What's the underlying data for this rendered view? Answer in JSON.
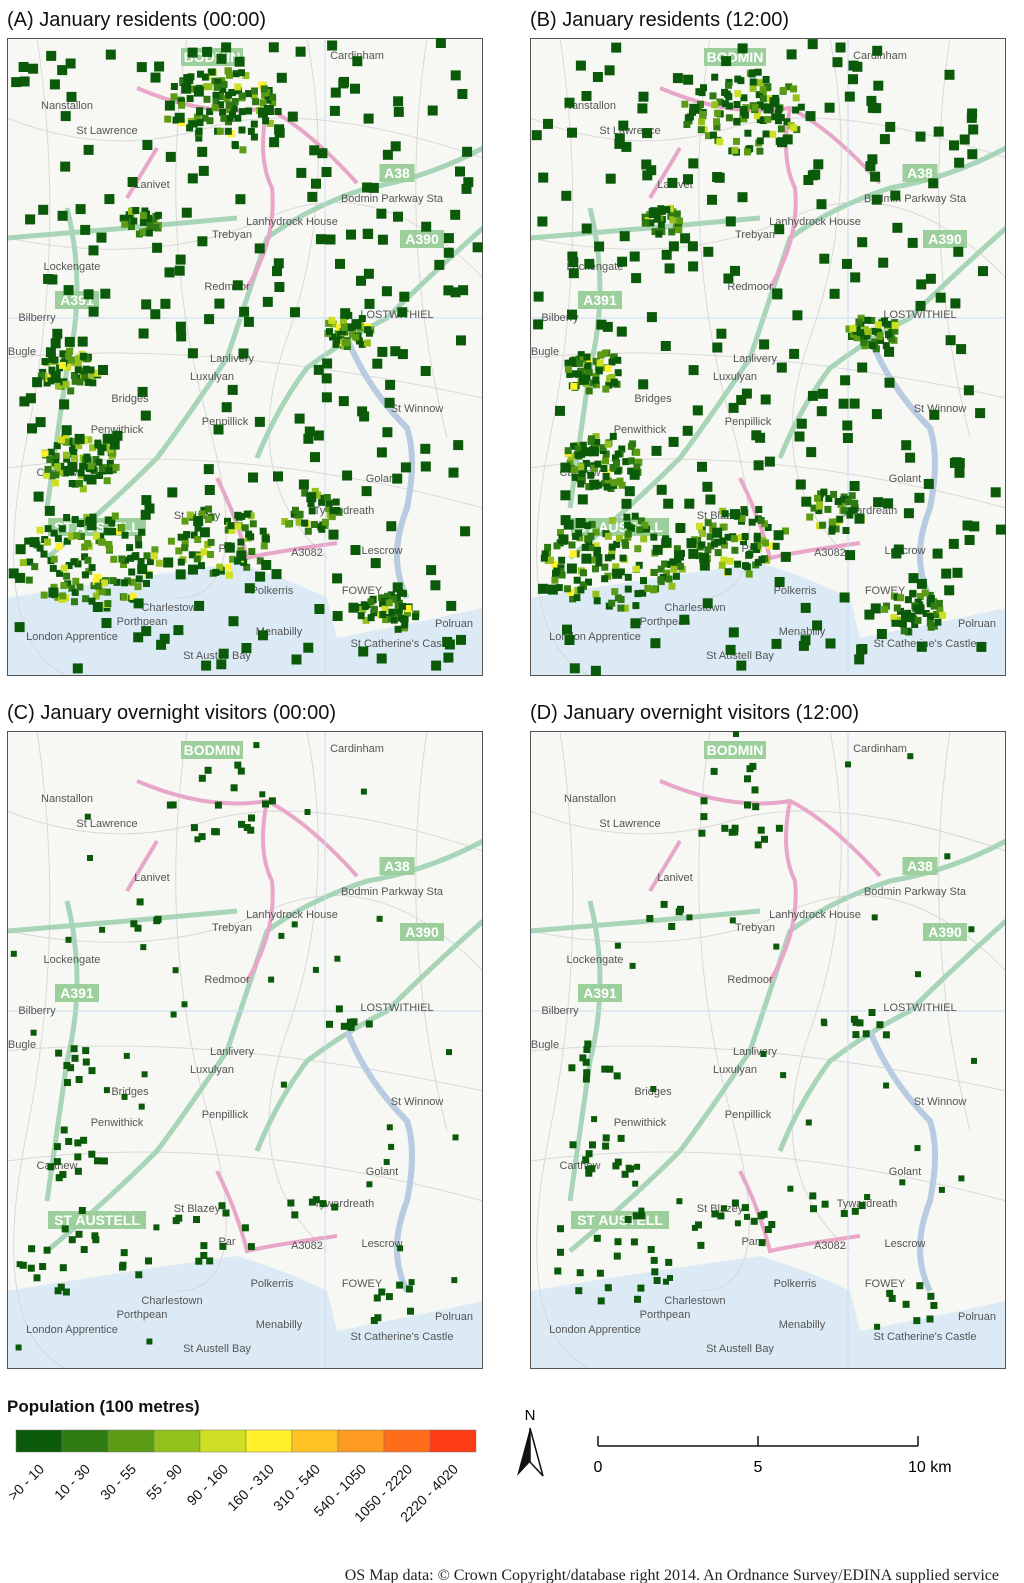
{
  "panels": [
    {
      "title": "(A) January residents (00:00)"
    },
    {
      "title": "(B) January residents (12:00)"
    },
    {
      "title": "(C) January overnight visitors (00:00)"
    },
    {
      "title": "(D) January overnight visitors (12:00)"
    }
  ],
  "map_labels": [
    "BODMIN",
    "Cardinham",
    "Nanstallon",
    "St Lawrence",
    "A38",
    "Lanivet",
    "Bodmin Parkway Sta",
    "Trebyan",
    "A390",
    "Lanhydrock House",
    "Lockengate",
    "Redmoor",
    "A391",
    "LOSTWITHIEL",
    "Bilberry",
    "Bugle",
    "Lanlivery",
    "Luxulyan",
    "Bridges",
    "St Winnow",
    "Penpillick",
    "Penwithick",
    "Carthew",
    "Golant",
    "Tywardreath",
    "ST AUSTELL",
    "St Blazey",
    "Par",
    "A3082",
    "Lescrow",
    "Polkerris",
    "FOWEY",
    "Charlestown",
    "Porthpean",
    "London Apprentice",
    "Menabilly",
    "Polruan",
    "St Catherine's Castle",
    "St Austell Bay"
  ],
  "legend": {
    "title": "Population (100 metres)",
    "classes": [
      {
        "label": ">0 - 10",
        "color": "#0a5a0a"
      },
      {
        "label": "10 - 30",
        "color": "#2f7a12"
      },
      {
        "label": "30 - 55",
        "color": "#5c9c15"
      },
      {
        "label": "55 - 90",
        "color": "#93c01c"
      },
      {
        "label": "90 - 160",
        "color": "#cfe024"
      },
      {
        "label": "160 - 310",
        "color": "#fff02a"
      },
      {
        "label": "310 - 540",
        "color": "#ffc225"
      },
      {
        "label": "540 - 1050",
        "color": "#ff9a20"
      },
      {
        "label": "1050 - 2220",
        "color": "#ff6c1a"
      },
      {
        "label": "2220 - 4020",
        "color": "#ff3b16"
      }
    ]
  },
  "north_label": "N",
  "scale_bar": {
    "ticks": [
      0,
      5,
      {
        "value": 10,
        "label": "10 km"
      }
    ],
    "lim": [
      0,
      10
    ]
  },
  "credit": "OS Map data: © Crown Copyright/database right 2014. An Ordnance Survey/EDINA supplied service"
}
